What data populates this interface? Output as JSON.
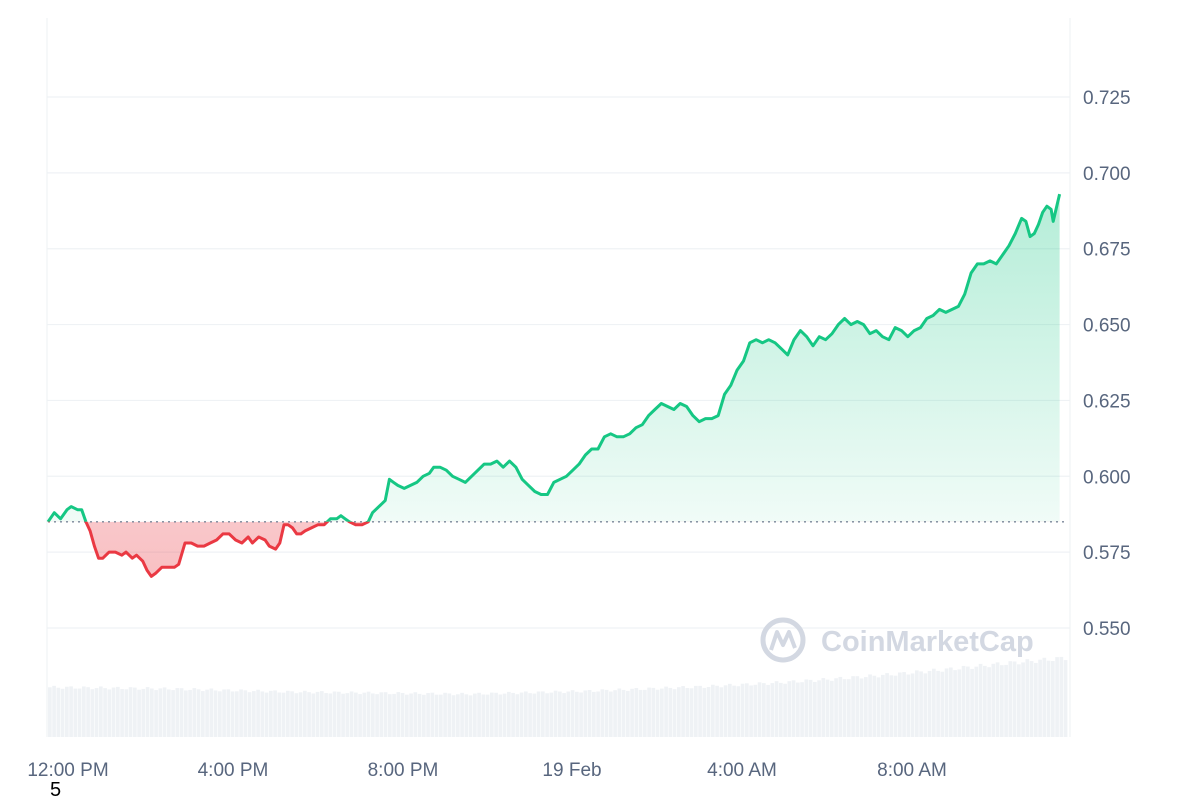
{
  "chart_data": {
    "type": "area",
    "title": "",
    "xlabel": "",
    "ylabel": "",
    "x_tick_labels": [
      "12:00 PM",
      "4:00 PM",
      "8:00 PM",
      "19 Feb",
      "4:00 AM",
      "8:00 AM"
    ],
    "y_tick_labels": [
      "0.550",
      "0.575",
      "0.600",
      "0.625",
      "0.650",
      "0.675",
      "0.700",
      "0.725"
    ],
    "ylim": [
      0.52,
      0.75
    ],
    "baseline": 0.585,
    "x_unit": "hours after 12:00 PM",
    "xlim": [
      0,
      24.2
    ],
    "colors": {
      "up": "#16c784",
      "down": "#ea3943",
      "volume": "#eff2f5",
      "grid": "#eff2f5",
      "axis_text": "#58667e"
    },
    "grid": true,
    "series": [
      {
        "values": [
          [
            0.0,
            0.585
          ],
          [
            0.15,
            0.588
          ],
          [
            0.3,
            0.586
          ],
          [
            0.45,
            0.589
          ],
          [
            0.55,
            0.59
          ],
          [
            0.7,
            0.589
          ],
          [
            0.8,
            0.589
          ],
          [
            0.9,
            0.585
          ],
          [
            1.0,
            0.582
          ],
          [
            1.1,
            0.577
          ],
          [
            1.2,
            0.573
          ],
          [
            1.3,
            0.573
          ],
          [
            1.45,
            0.575
          ],
          [
            1.6,
            0.575
          ],
          [
            1.75,
            0.574
          ],
          [
            1.85,
            0.575
          ],
          [
            2.0,
            0.573
          ],
          [
            2.1,
            0.574
          ],
          [
            2.25,
            0.572
          ],
          [
            2.35,
            0.569
          ],
          [
            2.45,
            0.567
          ],
          [
            2.55,
            0.568
          ],
          [
            2.7,
            0.57
          ],
          [
            2.85,
            0.57
          ],
          [
            3.0,
            0.57
          ],
          [
            3.1,
            0.571
          ],
          [
            3.25,
            0.578
          ],
          [
            3.4,
            0.578
          ],
          [
            3.55,
            0.577
          ],
          [
            3.7,
            0.577
          ],
          [
            3.85,
            0.578
          ],
          [
            4.0,
            0.579
          ],
          [
            4.15,
            0.581
          ],
          [
            4.3,
            0.581
          ],
          [
            4.45,
            0.579
          ],
          [
            4.6,
            0.578
          ],
          [
            4.75,
            0.58
          ],
          [
            4.85,
            0.578
          ],
          [
            5.0,
            0.58
          ],
          [
            5.15,
            0.579
          ],
          [
            5.25,
            0.577
          ],
          [
            5.4,
            0.576
          ],
          [
            5.5,
            0.578
          ],
          [
            5.6,
            0.584
          ],
          [
            5.7,
            0.584
          ],
          [
            5.8,
            0.583
          ],
          [
            5.9,
            0.581
          ],
          [
            6.0,
            0.581
          ],
          [
            6.1,
            0.582
          ],
          [
            6.25,
            0.583
          ],
          [
            6.4,
            0.584
          ],
          [
            6.55,
            0.584
          ],
          [
            6.7,
            0.586
          ],
          [
            6.85,
            0.586
          ],
          [
            6.95,
            0.587
          ],
          [
            7.05,
            0.586
          ],
          [
            7.15,
            0.585
          ],
          [
            7.3,
            0.584
          ],
          [
            7.45,
            0.584
          ],
          [
            7.6,
            0.585
          ],
          [
            7.7,
            0.588
          ],
          [
            7.85,
            0.59
          ],
          [
            8.0,
            0.592
          ],
          [
            8.1,
            0.599
          ],
          [
            8.2,
            0.598
          ],
          [
            8.3,
            0.597
          ],
          [
            8.45,
            0.596
          ],
          [
            8.6,
            0.597
          ],
          [
            8.75,
            0.598
          ],
          [
            8.9,
            0.6
          ],
          [
            9.05,
            0.601
          ],
          [
            9.15,
            0.603
          ],
          [
            9.3,
            0.603
          ],
          [
            9.45,
            0.602
          ],
          [
            9.6,
            0.6
          ],
          [
            9.75,
            0.599
          ],
          [
            9.9,
            0.598
          ],
          [
            10.05,
            0.6
          ],
          [
            10.2,
            0.602
          ],
          [
            10.35,
            0.604
          ],
          [
            10.5,
            0.604
          ],
          [
            10.65,
            0.605
          ],
          [
            10.8,
            0.603
          ],
          [
            10.95,
            0.605
          ],
          [
            11.1,
            0.603
          ],
          [
            11.25,
            0.599
          ],
          [
            11.4,
            0.597
          ],
          [
            11.55,
            0.595
          ],
          [
            11.7,
            0.594
          ],
          [
            11.85,
            0.594
          ],
          [
            12.0,
            0.598
          ],
          [
            12.15,
            0.599
          ],
          [
            12.3,
            0.6
          ],
          [
            12.45,
            0.602
          ],
          [
            12.6,
            0.604
          ],
          [
            12.75,
            0.607
          ],
          [
            12.9,
            0.609
          ],
          [
            13.05,
            0.609
          ],
          [
            13.2,
            0.613
          ],
          [
            13.35,
            0.614
          ],
          [
            13.5,
            0.613
          ],
          [
            13.65,
            0.613
          ],
          [
            13.8,
            0.614
          ],
          [
            13.95,
            0.616
          ],
          [
            14.1,
            0.617
          ],
          [
            14.25,
            0.62
          ],
          [
            14.4,
            0.622
          ],
          [
            14.55,
            0.624
          ],
          [
            14.7,
            0.623
          ],
          [
            14.85,
            0.622
          ],
          [
            15.0,
            0.624
          ],
          [
            15.15,
            0.623
          ],
          [
            15.3,
            0.62
          ],
          [
            15.45,
            0.618
          ],
          [
            15.6,
            0.619
          ],
          [
            15.75,
            0.619
          ],
          [
            15.9,
            0.62
          ],
          [
            16.05,
            0.627
          ],
          [
            16.2,
            0.63
          ],
          [
            16.35,
            0.635
          ],
          [
            16.5,
            0.638
          ],
          [
            16.65,
            0.644
          ],
          [
            16.8,
            0.645
          ],
          [
            16.95,
            0.644
          ],
          [
            17.1,
            0.645
          ],
          [
            17.25,
            0.644
          ],
          [
            17.4,
            0.642
          ],
          [
            17.55,
            0.64
          ],
          [
            17.7,
            0.645
          ],
          [
            17.85,
            0.648
          ],
          [
            18.0,
            0.646
          ],
          [
            18.15,
            0.643
          ],
          [
            18.3,
            0.646
          ],
          [
            18.45,
            0.645
          ],
          [
            18.6,
            0.647
          ],
          [
            18.75,
            0.65
          ],
          [
            18.9,
            0.652
          ],
          [
            19.05,
            0.65
          ],
          [
            19.2,
            0.651
          ],
          [
            19.35,
            0.65
          ],
          [
            19.5,
            0.647
          ],
          [
            19.65,
            0.648
          ],
          [
            19.8,
            0.646
          ],
          [
            19.95,
            0.645
          ],
          [
            20.1,
            0.649
          ],
          [
            20.25,
            0.648
          ],
          [
            20.4,
            0.646
          ],
          [
            20.55,
            0.648
          ],
          [
            20.7,
            0.649
          ],
          [
            20.85,
            0.652
          ],
          [
            21.0,
            0.653
          ],
          [
            21.15,
            0.655
          ],
          [
            21.3,
            0.654
          ],
          [
            21.45,
            0.655
          ],
          [
            21.6,
            0.656
          ],
          [
            21.75,
            0.66
          ],
          [
            21.9,
            0.667
          ],
          [
            22.05,
            0.67
          ],
          [
            22.2,
            0.67
          ],
          [
            22.35,
            0.671
          ],
          [
            22.5,
            0.67
          ],
          [
            22.65,
            0.673
          ],
          [
            22.8,
            0.676
          ],
          [
            22.95,
            0.68
          ],
          [
            23.1,
            0.685
          ],
          [
            23.2,
            0.684
          ],
          [
            23.3,
            0.679
          ],
          [
            23.4,
            0.68
          ],
          [
            23.5,
            0.683
          ],
          [
            23.6,
            0.687
          ],
          [
            23.7,
            0.689
          ],
          [
            23.8,
            0.688
          ],
          [
            23.85,
            0.684
          ],
          [
            24.0,
            0.693
          ]
        ]
      }
    ],
    "volume_relative": [
      0.62,
      0.61,
      0.6,
      0.58,
      0.56,
      0.55,
      0.54,
      0.53,
      0.55,
      0.57,
      0.6,
      0.63,
      0.67,
      0.72,
      0.78,
      0.85,
      0.93,
      1.0
    ]
  },
  "watermark": "CoinMarketCap",
  "page_number": "5"
}
